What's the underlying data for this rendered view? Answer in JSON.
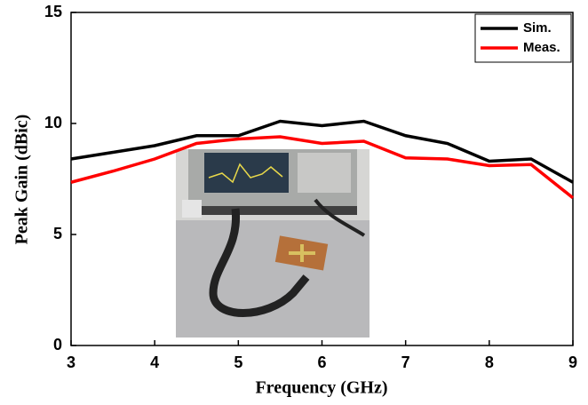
{
  "chart_data": {
    "type": "line",
    "x_label": "Frequency (GHz)",
    "y_label": "Peak Gain (dBic)",
    "x": [
      3,
      3.5,
      4,
      4.5,
      5,
      5.5,
      6,
      6.5,
      7,
      7.5,
      8,
      8.5,
      9
    ],
    "series": [
      {
        "name": "Sim.",
        "color": "#000000",
        "values": [
          8.4,
          8.7,
          9.0,
          9.45,
          9.45,
          10.1,
          9.9,
          10.1,
          9.45,
          9.1,
          8.3,
          8.4,
          7.35
        ]
      },
      {
        "name": "Meas.",
        "color": "#ff0000",
        "values": [
          7.35,
          7.85,
          8.4,
          9.1,
          9.3,
          9.4,
          9.1,
          9.2,
          8.45,
          8.4,
          8.1,
          8.15,
          6.65
        ]
      }
    ],
    "xlim": [
      3,
      9
    ],
    "ylim": [
      0,
      15
    ],
    "xticks": [
      3,
      4,
      5,
      6,
      7,
      8,
      9
    ],
    "yticks": [
      0,
      5,
      10,
      15
    ],
    "legend": "upper right"
  }
}
